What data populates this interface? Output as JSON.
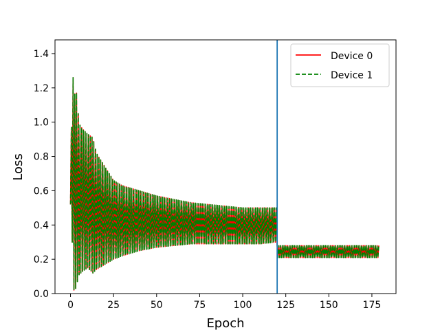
{
  "chart_data": {
    "type": "line",
    "title": "",
    "xlabel": "Epoch",
    "ylabel": "Loss",
    "xlim": [
      -9,
      189
    ],
    "ylim": [
      0.0,
      1.48
    ],
    "x_ticks": [
      0,
      25,
      50,
      75,
      100,
      125,
      150,
      175
    ],
    "x_tick_labels": [
      "0",
      "25",
      "50",
      "75",
      "100",
      "125",
      "150",
      "175"
    ],
    "y_ticks": [
      0.0,
      0.2,
      0.4,
      0.6,
      0.8,
      1.0,
      1.2,
      1.4
    ],
    "y_tick_labels": [
      "0.0",
      "0.2",
      "0.4",
      "0.6",
      "0.8",
      "1.0",
      "1.2",
      "1.4"
    ],
    "grid": false,
    "legend_position": "top-right",
    "vertical_line": {
      "x": 120,
      "color": "#1f77b4"
    },
    "x_range": [
      0,
      179
    ],
    "envelope_phase1": {
      "x": [
        0,
        1,
        2,
        3,
        5,
        7,
        10,
        13,
        15,
        20,
        25,
        30,
        40,
        50,
        60,
        70,
        80,
        90,
        100,
        110,
        119
      ],
      "upper": [
        0.52,
        1.42,
        1.1,
        1.23,
        0.99,
        0.96,
        0.93,
        0.91,
        0.82,
        0.74,
        0.66,
        0.63,
        0.6,
        0.57,
        0.55,
        0.53,
        0.52,
        0.51,
        0.5,
        0.5,
        0.5
      ],
      "lower": [
        0.52,
        0.3,
        0.02,
        0.03,
        0.11,
        0.13,
        0.15,
        0.12,
        0.14,
        0.17,
        0.2,
        0.22,
        0.25,
        0.27,
        0.28,
        0.29,
        0.29,
        0.29,
        0.29,
        0.29,
        0.3
      ]
    },
    "envelope_phase2": {
      "x_start": 120,
      "x_end": 179,
      "upper": 0.28,
      "lower": 0.21
    },
    "series": [
      {
        "name": "Device 0",
        "color": "#ff0000",
        "style": "solid"
      },
      {
        "name": "Device 1",
        "color": "#008000",
        "style": "dashed"
      }
    ]
  }
}
